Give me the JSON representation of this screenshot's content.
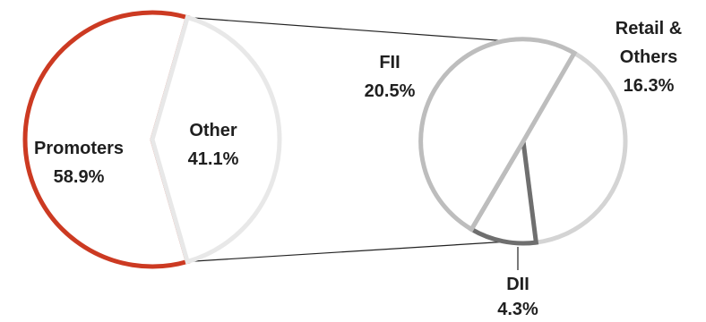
{
  "chart_data": {
    "type": "pie",
    "subtype": "pie-of-pie",
    "title": "",
    "main": {
      "slices": [
        {
          "label": "Promoters",
          "value": 58.9,
          "value_label": "58.9%",
          "color": "#cc3a22"
        },
        {
          "label": "Other",
          "value": 41.1,
          "value_label": "41.1%",
          "color": "#e8e8e8"
        }
      ]
    },
    "breakdown": {
      "of": "Other",
      "slices": [
        {
          "label": "FII",
          "value": 20.5,
          "value_label": "20.5%",
          "color": "#bdbdbd"
        },
        {
          "label": "DII",
          "value": 4.3,
          "value_label": "4.3%",
          "color": "#6f6f6f"
        },
        {
          "label": "Retail & Others",
          "label_lines": [
            "Retail &",
            "Others"
          ],
          "value": 16.3,
          "value_label": "16.3%",
          "color": "#d4d4d4"
        }
      ]
    },
    "connector_color": "#222222"
  }
}
